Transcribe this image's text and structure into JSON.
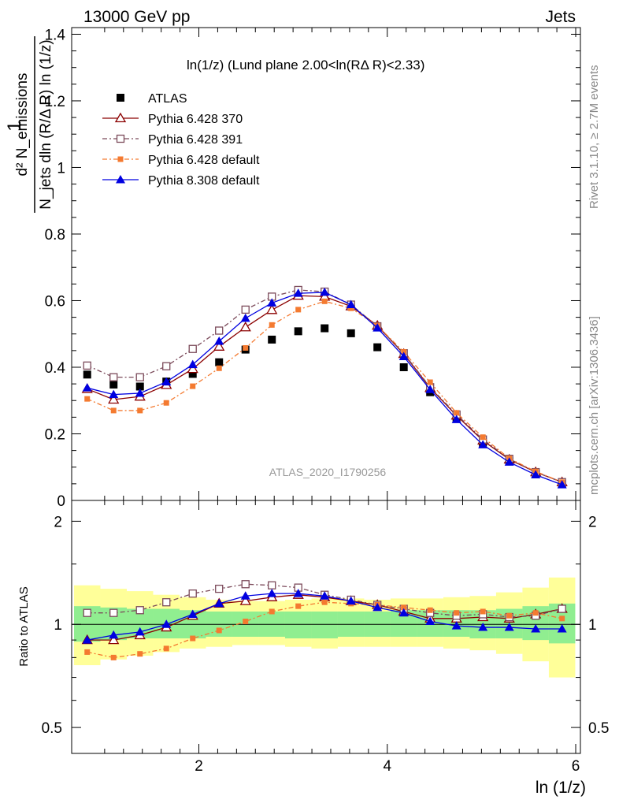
{
  "header": {
    "left": "13000 GeV pp",
    "right": "Jets"
  },
  "side_labels": {
    "rivet": "Rivet 3.1.10, ≥ 2.7M events",
    "mcplots": "mcplots.cern.ch [arXiv:1306.3436]"
  },
  "main_panel": {
    "title": "ln(1/z) (Lund plane 2.00<ln(RΔ R)<2.33)",
    "analysis_id": "ATLAS_2020_I1790256",
    "ylabel_numerator": "d² N_emissions",
    "ylabel_denominator": "N_jets dln (R/Δ R) ln (1/z)",
    "y_ticks": [
      "0",
      "0.2",
      "0.4",
      "0.6",
      "0.8",
      "1",
      "1.2",
      "1.4"
    ],
    "legend": [
      "ATLAS",
      "Pythia 6.428 370",
      "Pythia 6.428 391",
      "Pythia 6.428 default",
      "Pythia 8.308 default"
    ]
  },
  "ratio_panel": {
    "ylabel": "Ratio to ATLAS",
    "y_ticks_left": [
      "0.5",
      "1",
      "2"
    ],
    "y_ticks_right": [
      "0.5",
      "1",
      "2"
    ]
  },
  "x_axis": {
    "label": "ln (1/z)",
    "ticks": [
      "2",
      "4",
      "6"
    ]
  },
  "colors": {
    "atlas": "#000000",
    "p370": "#8b0000",
    "p391": "#7b4a5a",
    "p6def": "#f47a30",
    "p8def": "#0000e0",
    "band_green": "#90ee90",
    "band_yellow": "#ffff99"
  },
  "chart_data": {
    "type": "scatter",
    "xlim": [
      0.65,
      6.05
    ],
    "main_ylim": [
      0,
      1.42
    ],
    "ratio_ylim": [
      0.42,
      2.3
    ],
    "ratio_log_scale": true,
    "x": [
      0.815,
      1.095,
      1.375,
      1.655,
      1.935,
      2.215,
      2.495,
      2.775,
      3.055,
      3.335,
      3.615,
      3.895,
      4.175,
      4.455,
      4.735,
      5.015,
      5.295,
      5.575,
      5.855
    ],
    "series": [
      {
        "name": "ATLAS",
        "values": [
          0.378,
          0.348,
          0.342,
          0.357,
          0.38,
          0.415,
          0.453,
          0.483,
          0.508,
          0.517,
          0.502,
          0.46,
          0.4,
          0.325,
          0.245,
          0.17,
          0.118,
          0.08,
          0.05
        ]
      },
      {
        "name": "Pythia 6.428 370",
        "values": [
          0.335,
          0.303,
          0.312,
          0.347,
          0.395,
          0.462,
          0.52,
          0.572,
          0.615,
          0.612,
          0.583,
          0.525,
          0.44,
          0.338,
          0.255,
          0.18,
          0.123,
          0.085,
          0.055
        ]
      },
      {
        "name": "Pythia 6.428 391",
        "values": [
          0.405,
          0.37,
          0.37,
          0.403,
          0.455,
          0.51,
          0.573,
          0.612,
          0.632,
          0.627,
          0.588,
          0.523,
          0.442,
          0.34,
          0.258,
          0.183,
          0.125,
          0.085,
          0.055
        ]
      },
      {
        "name": "Pythia 6.428 default",
        "values": [
          0.305,
          0.27,
          0.27,
          0.293,
          0.343,
          0.397,
          0.458,
          0.527,
          0.573,
          0.598,
          0.577,
          0.525,
          0.446,
          0.355,
          0.263,
          0.19,
          0.126,
          0.087,
          0.055
        ]
      },
      {
        "name": "Pythia 8.308 default",
        "values": [
          0.338,
          0.318,
          0.322,
          0.356,
          0.408,
          0.478,
          0.547,
          0.593,
          0.622,
          0.625,
          0.588,
          0.518,
          0.432,
          0.333,
          0.243,
          0.167,
          0.115,
          0.077,
          0.047
        ]
      }
    ],
    "ratio_series": [
      {
        "name": "Pythia 6.428 370",
        "values": [
          0.9,
          0.9,
          0.93,
          0.98,
          1.06,
          1.15,
          1.17,
          1.2,
          1.22,
          1.2,
          1.17,
          1.14,
          1.09,
          1.04,
          1.04,
          1.05,
          1.04,
          1.07,
          1.11
        ]
      },
      {
        "name": "Pythia 6.428 391",
        "values": [
          1.08,
          1.08,
          1.1,
          1.16,
          1.23,
          1.27,
          1.31,
          1.3,
          1.28,
          1.22,
          1.18,
          1.14,
          1.11,
          1.08,
          1.06,
          1.07,
          1.05,
          1.06,
          1.11
        ]
      },
      {
        "name": "Pythia 6.428 default",
        "values": [
          0.83,
          0.8,
          0.82,
          0.85,
          0.91,
          0.96,
          1.02,
          1.09,
          1.13,
          1.16,
          1.15,
          1.14,
          1.12,
          1.1,
          1.08,
          1.09,
          1.06,
          1.08,
          1.04
        ]
      },
      {
        "name": "Pythia 8.308 default",
        "values": [
          0.9,
          0.93,
          0.95,
          1.0,
          1.07,
          1.15,
          1.21,
          1.23,
          1.23,
          1.21,
          1.17,
          1.12,
          1.08,
          1.02,
          0.99,
          0.98,
          0.98,
          0.97,
          0.97
        ]
      }
    ],
    "band_edges": [
      0.675,
      0.955,
      1.235,
      1.515,
      1.795,
      2.075,
      2.355,
      2.635,
      2.915,
      3.195,
      3.475,
      3.755,
      4.035,
      4.315,
      4.595,
      4.875,
      5.155,
      5.435,
      5.715,
      5.995
    ],
    "band_green": [
      [
        0.89,
        1.13
      ],
      [
        0.9,
        1.12
      ],
      [
        0.91,
        1.11
      ],
      [
        0.91,
        1.11
      ],
      [
        0.91,
        1.1
      ],
      [
        0.92,
        1.09
      ],
      [
        0.92,
        1.09
      ],
      [
        0.92,
        1.09
      ],
      [
        0.91,
        1.09
      ],
      [
        0.91,
        1.09
      ],
      [
        0.92,
        1.09
      ],
      [
        0.92,
        1.09
      ],
      [
        0.92,
        1.1
      ],
      [
        0.92,
        1.1
      ],
      [
        0.92,
        1.1
      ],
      [
        0.91,
        1.1
      ],
      [
        0.91,
        1.11
      ],
      [
        0.9,
        1.13
      ],
      [
        0.88,
        1.15
      ]
    ],
    "band_yellow": [
      [
        0.76,
        1.3
      ],
      [
        0.79,
        1.27
      ],
      [
        0.81,
        1.25
      ],
      [
        0.83,
        1.22
      ],
      [
        0.85,
        1.2
      ],
      [
        0.86,
        1.18
      ],
      [
        0.87,
        1.17
      ],
      [
        0.87,
        1.17
      ],
      [
        0.86,
        1.18
      ],
      [
        0.85,
        1.19
      ],
      [
        0.86,
        1.19
      ],
      [
        0.86,
        1.18
      ],
      [
        0.86,
        1.19
      ],
      [
        0.86,
        1.19
      ],
      [
        0.85,
        1.2
      ],
      [
        0.84,
        1.21
      ],
      [
        0.82,
        1.24
      ],
      [
        0.78,
        1.28
      ],
      [
        0.7,
        1.37
      ]
    ]
  }
}
